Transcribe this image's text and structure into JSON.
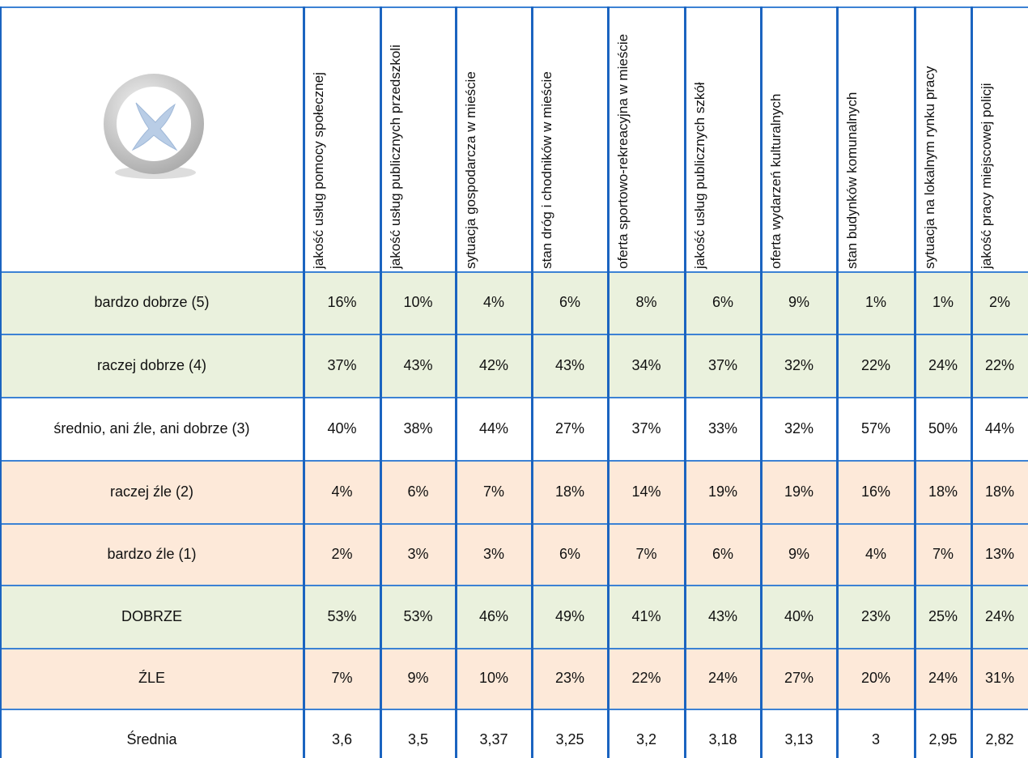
{
  "table": {
    "columns": [
      "jakość usług pomocy społecznej",
      "jakość usług publicznych przedszkoli",
      "sytuacja gospodarcza w mieście",
      "stan dróg i chodników w mieście",
      "oferta sportowo-rekreacyjna w mieście",
      "jakość usług publicznych szkół",
      "oferta wydarzeń kulturalnych",
      "stan budynków komunalnych",
      "sytuacja na lokalnym rynku pracy",
      "jakość pracy miejscowej policji"
    ],
    "rows": [
      {
        "label": "bardzo dobrze (5)",
        "values": [
          "16%",
          "10%",
          "4%",
          "6%",
          "8%",
          "6%",
          "9%",
          "1%",
          "1%",
          "2%"
        ]
      },
      {
        "label": "raczej dobrze (4)",
        "values": [
          "37%",
          "43%",
          "42%",
          "43%",
          "34%",
          "37%",
          "32%",
          "22%",
          "24%",
          "22%"
        ]
      },
      {
        "label": "średnio, ani źle, ani dobrze (3)",
        "values": [
          "40%",
          "38%",
          "44%",
          "27%",
          "37%",
          "33%",
          "32%",
          "57%",
          "50%",
          "44%"
        ]
      },
      {
        "label": "raczej źle (2)",
        "values": [
          "4%",
          "6%",
          "7%",
          "18%",
          "14%",
          "19%",
          "19%",
          "16%",
          "18%",
          "18%"
        ]
      },
      {
        "label": "bardzo źle (1)",
        "values": [
          "2%",
          "3%",
          "3%",
          "6%",
          "7%",
          "6%",
          "9%",
          "4%",
          "7%",
          "13%"
        ]
      },
      {
        "label": "DOBRZE",
        "values": [
          "53%",
          "53%",
          "46%",
          "49%",
          "41%",
          "43%",
          "40%",
          "23%",
          "25%",
          "24%"
        ]
      },
      {
        "label": "ŹLE",
        "values": [
          "7%",
          "9%",
          "10%",
          "23%",
          "22%",
          "24%",
          "27%",
          "20%",
          "24%",
          "31%"
        ]
      },
      {
        "label": "Średnia",
        "values": [
          "3,6",
          "3,5",
          "3,37",
          "3,25",
          "3,2",
          "3,18",
          "3,13",
          "3",
          "2,95",
          "2,82"
        ]
      }
    ]
  }
}
